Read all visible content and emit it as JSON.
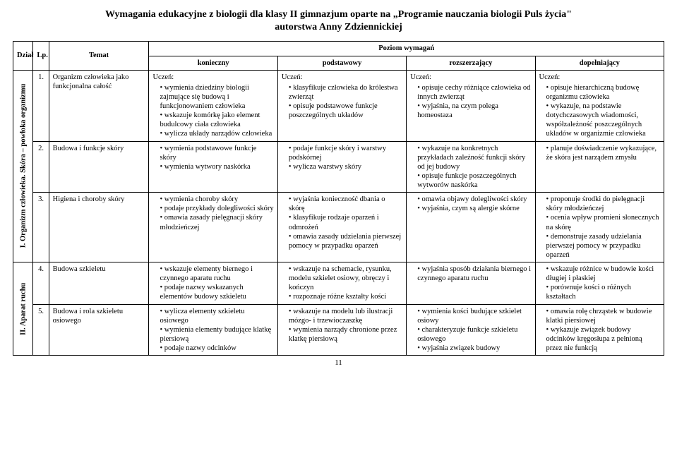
{
  "title_line1": "Wymagania edukacyjne z biologii dla klasy II gimnazjum oparte na „Programie nauczania biologii Puls życia\"",
  "title_line2": "autorstwa Anny Zdziennickiej",
  "headers": {
    "dzial": "Dział",
    "lp": "Lp.",
    "temat": "Temat",
    "poziom": "Poziom wymagań",
    "konieczny": "konieczny",
    "podstawowy": "podstawowy",
    "rozszerzajacy": "rozszerzający",
    "dopelniajacy": "dopełniający"
  },
  "sections": [
    {
      "label": "I. Organizm człowieka. Skóra – powłoka organizmu",
      "rows": [
        {
          "lp": "1.",
          "temat": "Organizm człowieka jako funkcjonalna całość",
          "k_pre": "Uczeń:",
          "k": [
            "wymienia dziedziny biologii zajmujące się budową i funkcjonowaniem człowieka",
            "wskazuje komórkę jako element budulcowy ciała człowieka",
            "wylicza układy narządów człowieka"
          ],
          "p_pre": "Uczeń:",
          "p": [
            "klasyfikuje człowieka do królestwa zwierząt",
            "opisuje podstawowe funkcje poszczególnych układów"
          ],
          "r_pre": "Uczeń:",
          "r": [
            "opisuje cechy różniące człowieka od innych zwierząt",
            "wyjaśnia, na czym polega homeostaza"
          ],
          "d_pre": "Uczeń:",
          "d": [
            "opisuje hierarchiczną budowę organizmu człowieka",
            "wykazuje, na podstawie dotychczasowych wiadomości, współzależność poszczególnych układów w organizmie człowieka"
          ]
        },
        {
          "lp": "2.",
          "temat": "Budowa i funkcje skóry",
          "k": [
            "wymienia podstawowe funkcje skóry",
            "wymienia wytwory naskórka"
          ],
          "p": [
            "podaje funkcje skóry i warstwy podskórnej",
            "wylicza warstwy skóry"
          ],
          "r": [
            "wykazuje na konkretnych przykładach zależność funkcji skóry od jej budowy",
            "opisuje funkcje poszczególnych wytworów naskórka"
          ],
          "d": [
            "planuje doświadczenie wykazujące, że skóra jest narządem zmysłu"
          ]
        },
        {
          "lp": "3.",
          "temat": "Higiena i choroby skóry",
          "k": [
            "wymienia choroby skóry",
            "podaje przykłady dolegliwości skóry",
            "omawia zasady pielęgnacji skóry młodzieńczej"
          ],
          "p": [
            "wyjaśnia konieczność dbania o skórę",
            "klasyfikuje rodzaje oparzeń i odmrożeń",
            "omawia zasady udzielania pierwszej pomocy w przypadku oparzeń"
          ],
          "r": [
            "omawia objawy dolegliwości skóry",
            "wyjaśnia, czym są alergie skórne"
          ],
          "d": [
            "proponuje środki do pielęgnacji skóry młodzieńczej",
            "ocenia wpływ promieni słonecznych na skórę",
            "demonstruje zasady udzielania pierwszej pomocy w przypadku oparzeń"
          ]
        }
      ]
    },
    {
      "label": "II. Aparat ruchu",
      "rows": [
        {
          "lp": "4.",
          "temat": "Budowa szkieletu",
          "k": [
            "wskazuje elementy biernego i czynnego aparatu ruchu",
            "podaje nazwy wskazanych elementów budowy szkieletu"
          ],
          "p": [
            "wskazuje na schemacie, rysunku, modelu szkielet osiowy, obręczy i kończyn",
            "rozpoznaje różne kształty kości"
          ],
          "r": [
            "wyjaśnia sposób działania biernego i czynnego aparatu ruchu"
          ],
          "d": [
            "wskazuje różnice w budowie kości długiej i płaskiej",
            "porównuje kości o różnych kształtach"
          ]
        },
        {
          "lp": "5.",
          "temat": "Budowa i rola szkieletu osiowego",
          "k": [
            "wylicza elementy szkieletu osiowego",
            "wymienia elementy budujące klatkę piersiową",
            "podaje nazwy odcinków"
          ],
          "p": [
            "wskazuje na modelu lub ilustracji mózgo- i trzewioczaszkę",
            "wymienia narządy chronione przez klatkę piersiową"
          ],
          "r": [
            "wymienia kości budujące szkielet osiowy",
            "charakteryzuje funkcje szkieletu osiowego",
            "wyjaśnia związek budowy"
          ],
          "d": [
            "omawia rolę chrząstek w budowie klatki piersiowej",
            "wykazuje związek budowy odcinków kręgosłupa z pełnioną przez nie funkcją"
          ]
        }
      ]
    }
  ],
  "page_number": "11"
}
